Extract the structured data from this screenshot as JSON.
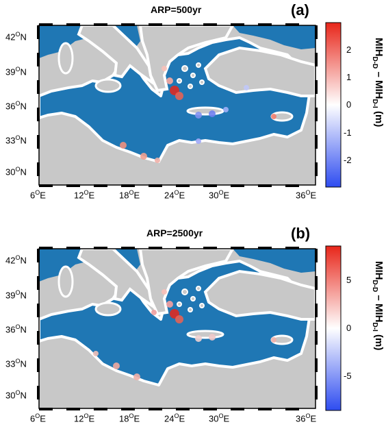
{
  "panels": [
    {
      "title": "ARP=500yr",
      "letter": "(a)",
      "colorbar_label": {
        "main": "MIH",
        "sub1": "D-D",
        "mid": " – MIH",
        "sub2": "D-I",
        "unit": " (m)"
      },
      "colorbar_ticks": [
        "2",
        "1",
        "0",
        "-1",
        "-2"
      ],
      "colorbar_range": [
        -3,
        3
      ]
    },
    {
      "title": "ARP=2500yr",
      "letter": "(b)",
      "colorbar_label": {
        "main": "MIH",
        "sub1": "D-D",
        "mid": " – MIH",
        "sub2": "D-I",
        "unit": " (m)"
      },
      "colorbar_ticks": [
        "5",
        "0",
        "-5"
      ],
      "colorbar_range": [
        -8,
        8
      ]
    }
  ],
  "lat_ticks": [
    "42",
    "39",
    "36",
    "33",
    "30"
  ],
  "lon_ticks": [
    "6",
    "12",
    "18",
    "24",
    "30",
    "36"
  ],
  "lat_suffix": "N",
  "lon_suffix": "E",
  "degree": "O",
  "colors": {
    "sea": "#1f77b4",
    "land": "#c8c8c8",
    "coast": "#ffffff",
    "positive": "#e8261a",
    "negative": "#2e4cf0"
  }
}
